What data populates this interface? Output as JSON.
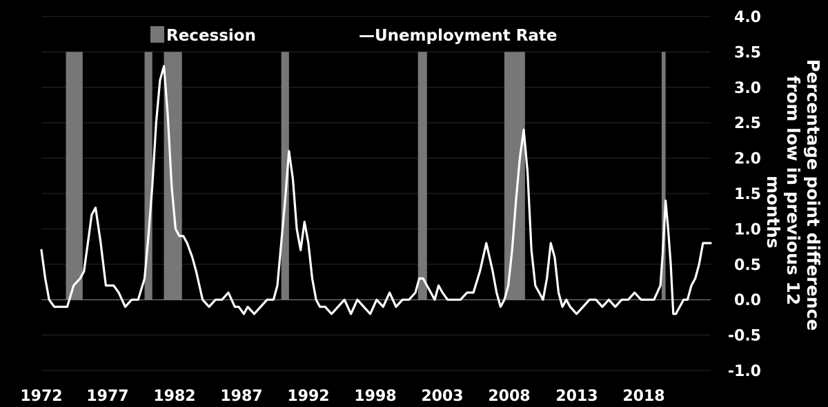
{
  "chart_data": {
    "type": "line",
    "title": "",
    "xlabel": "",
    "ylabel_lines": [
      "Percentage point difference",
      "from low in previous 12",
      "months"
    ],
    "ylim": [
      -1.0,
      4.0
    ],
    "y_ticks": [
      "-1.0",
      "-0.5",
      "0.0",
      "0.5",
      "1.0",
      "1.5",
      "2.0",
      "2.5",
      "3.0",
      "3.5",
      "4.0"
    ],
    "x_ticks": [
      "1972",
      "1977",
      "1982",
      "1987",
      "1992",
      "1998",
      "2003",
      "2008",
      "2013",
      "2018"
    ],
    "grid": true,
    "legend": {
      "placement": "top",
      "items": [
        {
          "label": "Recession",
          "kind": "bar",
          "color": "#777777"
        },
        {
          "label": "—Unemployment Rate",
          "kind": "line",
          "color": "#ffffff"
        }
      ]
    },
    "recessions": [
      {
        "start": 1973.9,
        "end": 1975.2
      },
      {
        "start": 1980.0,
        "end": 1980.6
      },
      {
        "start": 1981.5,
        "end": 1982.9
      },
      {
        "start": 1990.6,
        "end": 1991.2
      },
      {
        "start": 2001.2,
        "end": 2001.9
      },
      {
        "start": 2007.9,
        "end": 2009.5
      },
      {
        "start": 2020.1,
        "end": 2020.4
      }
    ],
    "series": [
      {
        "name": "Unemployment Rate",
        "color": "#ffffff",
        "x": [
          1972.0,
          1972.3,
          1972.6,
          1973.0,
          1973.5,
          1974.0,
          1974.5,
          1975.0,
          1975.3,
          1975.6,
          1975.9,
          1976.2,
          1976.6,
          1977.0,
          1977.3,
          1977.6,
          1978.0,
          1978.5,
          1979.0,
          1979.5,
          1980.0,
          1980.3,
          1980.6,
          1980.9,
          1981.2,
          1981.5,
          1981.8,
          1982.1,
          1982.4,
          1982.7,
          1983.0,
          1983.3,
          1983.7,
          1984.0,
          1984.5,
          1985.0,
          1985.5,
          1986.0,
          1986.5,
          1987.0,
          1987.3,
          1987.7,
          1988.0,
          1988.5,
          1989.0,
          1989.5,
          1990.0,
          1990.3,
          1990.6,
          1990.9,
          1991.2,
          1991.5,
          1991.8,
          1992.1,
          1992.4,
          1992.7,
          1993.0,
          1993.3,
          1993.6,
          1994.0,
          1994.5,
          1995.0,
          1995.5,
          1996.0,
          1996.5,
          1997.0,
          1997.5,
          1998.0,
          1998.5,
          1999.0,
          1999.5,
          2000.0,
          2000.5,
          2001.0,
          2001.3,
          2001.6,
          2001.9,
          2002.2,
          2002.5,
          2002.8,
          2003.1,
          2003.5,
          2004.0,
          2004.5,
          2005.0,
          2005.5,
          2006.0,
          2006.5,
          2007.0,
          2007.3,
          2007.6,
          2007.9,
          2008.2,
          2008.5,
          2008.8,
          2009.1,
          2009.4,
          2009.7,
          2010.0,
          2010.3,
          2010.6,
          2010.9,
          2011.2,
          2011.5,
          2011.8,
          2012.1,
          2012.4,
          2012.7,
          2013.0,
          2013.5,
          2014.0,
          2014.5,
          2015.0,
          2015.5,
          2016.0,
          2016.5,
          2017.0,
          2017.5,
          2018.0,
          2018.5,
          2019.0,
          2019.5,
          2020.0,
          2020.2,
          2020.4,
          2020.6,
          2020.8,
          2021.0,
          2021.2,
          2021.5,
          2021.8,
          2022.1,
          2022.4,
          2022.7,
          2023.0,
          2023.3,
          2023.6,
          2023.9
        ],
        "values": [
          0.7,
          0.3,
          0.0,
          -0.1,
          -0.1,
          -0.1,
          0.2,
          0.3,
          0.4,
          0.8,
          1.2,
          1.3,
          0.8,
          0.2,
          0.2,
          0.2,
          0.1,
          -0.1,
          0.0,
          0.0,
          0.3,
          0.9,
          1.6,
          2.5,
          3.1,
          3.3,
          2.6,
          1.6,
          1.0,
          0.9,
          0.9,
          0.8,
          0.6,
          0.4,
          0.0,
          -0.1,
          0.0,
          0.0,
          0.1,
          -0.1,
          -0.1,
          -0.2,
          -0.1,
          -0.2,
          -0.1,
          0.0,
          0.0,
          0.2,
          0.8,
          1.4,
          2.1,
          1.7,
          1.0,
          0.7,
          1.1,
          0.8,
          0.3,
          0.0,
          -0.1,
          -0.1,
          -0.2,
          -0.1,
          0.0,
          -0.2,
          0.0,
          -0.1,
          -0.2,
          0.0,
          -0.1,
          0.1,
          -0.1,
          0.0,
          0.0,
          0.1,
          0.3,
          0.3,
          0.2,
          0.1,
          0.0,
          0.2,
          0.1,
          0.0,
          0.0,
          0.0,
          0.1,
          0.1,
          0.4,
          0.8,
          0.4,
          0.1,
          -0.1,
          0.0,
          0.2,
          0.7,
          1.4,
          2.0,
          2.4,
          1.8,
          0.7,
          0.2,
          0.1,
          0.0,
          0.3,
          0.8,
          0.6,
          0.1,
          -0.1,
          0.0,
          -0.1,
          -0.2,
          -0.1,
          0.0,
          0.0,
          -0.1,
          0.0,
          -0.1,
          0.0,
          0.0,
          0.1,
          0.0,
          0.0,
          0.0,
          0.2,
          0.7,
          1.4,
          1.0,
          0.5,
          -0.2,
          -0.2,
          -0.1,
          0.0,
          0.0,
          0.2,
          0.3,
          0.5,
          0.8,
          0.8,
          0.8
        ]
      }
    ]
  }
}
